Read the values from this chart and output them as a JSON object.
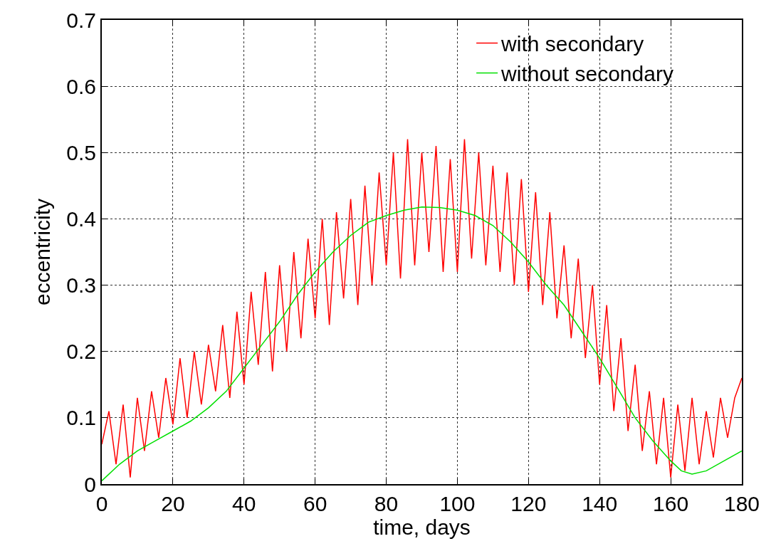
{
  "chart_data": {
    "type": "line",
    "xlabel": "time, days",
    "ylabel": "eccentricity",
    "xlim": [
      0,
      180
    ],
    "ylim": [
      0,
      0.7
    ],
    "xticks": [
      0,
      20,
      40,
      60,
      80,
      100,
      120,
      140,
      160,
      180
    ],
    "yticks": [
      0,
      0.1,
      0.2,
      0.3,
      0.4,
      0.5,
      0.6,
      0.7
    ],
    "grid": true,
    "legend": "top right",
    "marker": "none",
    "line_style": "solid",
    "series": [
      {
        "name": "with secondary",
        "color": "#ff0000",
        "x": [
          0,
          2,
          4,
          6,
          8,
          10,
          12,
          14,
          16,
          18,
          20,
          22,
          24,
          26,
          28,
          30,
          32,
          34,
          36,
          38,
          40,
          42,
          44,
          46,
          48,
          50,
          52,
          54,
          56,
          58,
          60,
          62,
          64,
          66,
          68,
          70,
          72,
          74,
          76,
          78,
          80,
          82,
          84,
          86,
          88,
          90,
          92,
          94,
          96,
          98,
          100,
          102,
          104,
          106,
          108,
          110,
          112,
          114,
          116,
          118,
          120,
          122,
          124,
          126,
          128,
          130,
          132,
          134,
          136,
          138,
          140,
          142,
          144,
          146,
          148,
          150,
          152,
          154,
          156,
          158,
          160,
          162,
          164,
          166,
          168,
          170,
          172,
          174,
          176,
          178,
          180
        ],
        "values": [
          0.06,
          0.11,
          0.03,
          0.12,
          0.01,
          0.13,
          0.05,
          0.14,
          0.07,
          0.16,
          0.09,
          0.19,
          0.1,
          0.2,
          0.12,
          0.21,
          0.14,
          0.24,
          0.13,
          0.26,
          0.15,
          0.29,
          0.18,
          0.32,
          0.17,
          0.33,
          0.2,
          0.35,
          0.22,
          0.37,
          0.25,
          0.4,
          0.24,
          0.41,
          0.28,
          0.43,
          0.27,
          0.45,
          0.3,
          0.47,
          0.33,
          0.5,
          0.31,
          0.52,
          0.33,
          0.5,
          0.35,
          0.51,
          0.32,
          0.49,
          0.32,
          0.52,
          0.34,
          0.5,
          0.33,
          0.48,
          0.32,
          0.47,
          0.3,
          0.46,
          0.29,
          0.44,
          0.27,
          0.41,
          0.25,
          0.36,
          0.22,
          0.34,
          0.19,
          0.3,
          0.15,
          0.27,
          0.11,
          0.22,
          0.08,
          0.18,
          0.05,
          0.14,
          0.03,
          0.13,
          0.01,
          0.12,
          0.02,
          0.13,
          0.03,
          0.11,
          0.04,
          0.13,
          0.07,
          0.13,
          0.16
        ]
      },
      {
        "name": "without secondary",
        "color": "#00e000",
        "x": [
          0,
          5,
          10,
          15,
          20,
          25,
          30,
          35,
          40,
          45,
          50,
          55,
          60,
          65,
          70,
          75,
          80,
          85,
          90,
          95,
          100,
          105,
          110,
          115,
          120,
          125,
          130,
          135,
          140,
          145,
          150,
          155,
          160,
          163,
          166,
          170,
          175,
          180
        ],
        "values": [
          0.005,
          0.03,
          0.05,
          0.065,
          0.08,
          0.095,
          0.115,
          0.14,
          0.175,
          0.21,
          0.245,
          0.285,
          0.32,
          0.35,
          0.375,
          0.395,
          0.405,
          0.413,
          0.418,
          0.417,
          0.413,
          0.405,
          0.39,
          0.365,
          0.335,
          0.3,
          0.27,
          0.23,
          0.19,
          0.145,
          0.1,
          0.065,
          0.035,
          0.02,
          0.015,
          0.02,
          0.035,
          0.05
        ]
      }
    ]
  }
}
